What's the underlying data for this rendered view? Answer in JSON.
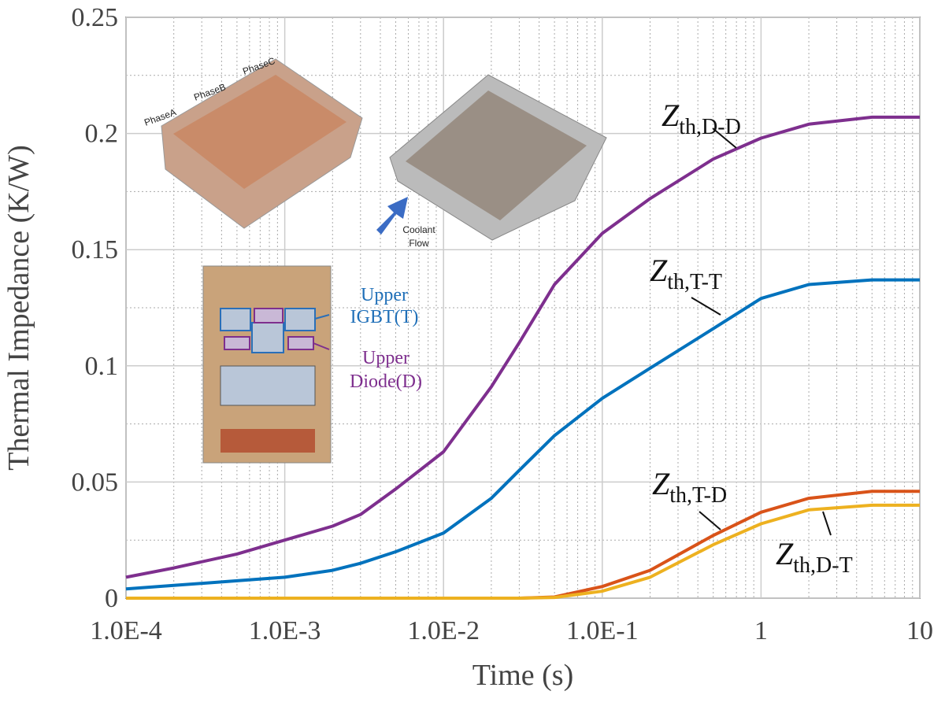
{
  "chart_data": {
    "type": "line",
    "y_label": "Thermal Impedance (K/W)",
    "x_label": "Time (s)",
    "log_x": true,
    "grid": true,
    "x": [
      0.0001,
      0.0002,
      0.0005,
      0.001,
      0.002,
      0.003,
      0.005,
      0.01,
      0.02,
      0.03,
      0.05,
      0.1,
      0.2,
      0.5,
      1,
      2,
      5,
      10
    ],
    "series": [
      {
        "name": "Z",
        "name_sub": "th,D-D",
        "color": "#7e2f8e",
        "values": [
          0.009,
          0.013,
          0.019,
          0.025,
          0.031,
          0.036,
          0.047,
          0.063,
          0.091,
          0.11,
          0.135,
          0.157,
          0.172,
          0.189,
          0.198,
          0.204,
          0.207,
          0.207
        ]
      },
      {
        "name": "Z",
        "name_sub": "th,T-T",
        "color": "#0072bd",
        "values": [
          0.004,
          0.0055,
          0.0075,
          0.009,
          0.012,
          0.015,
          0.02,
          0.028,
          0.043,
          0.055,
          0.07,
          0.086,
          0.099,
          0.116,
          0.129,
          0.135,
          0.137,
          0.137
        ]
      },
      {
        "name": "Z",
        "name_sub": "th,T-D",
        "color": "#d95319",
        "values": [
          0,
          0,
          0,
          0,
          0,
          0,
          0,
          0,
          0,
          0,
          0.0005,
          0.005,
          0.012,
          0.027,
          0.037,
          0.043,
          0.046,
          0.046
        ]
      },
      {
        "name": "Z",
        "name_sub": "th,D-T",
        "color": "#edb120",
        "values": [
          0,
          0,
          0,
          0,
          0,
          0,
          0,
          0,
          0,
          0,
          0.0003,
          0.003,
          0.009,
          0.023,
          0.032,
          0.038,
          0.04,
          0.04
        ]
      }
    ],
    "xlim": [
      0.0001,
      10
    ],
    "ylim": [
      0,
      0.25
    ],
    "xticks": [
      {
        "value": 0.0001,
        "label": "1.0E-4"
      },
      {
        "value": 0.001,
        "label": "1.0E-3"
      },
      {
        "value": 0.01,
        "label": "1.0E-2"
      },
      {
        "value": 0.1,
        "label": "1.0E-1"
      },
      1,
      10
    ],
    "yticks": [
      0,
      0.05,
      0.1,
      0.15,
      0.2,
      0.25
    ],
    "xminorticks": [
      0.0002,
      0.0003,
      0.0004,
      0.0005,
      0.0006,
      0.0007,
      0.0008,
      0.0009,
      0.002,
      0.003,
      0.004,
      0.005,
      0.006,
      0.007,
      0.008,
      0.009,
      0.02,
      0.03,
      0.04,
      0.05,
      0.06,
      0.07,
      0.08,
      0.09,
      0.2,
      0.3,
      0.4,
      0.5,
      0.6,
      0.7,
      0.8,
      0.9,
      2,
      3,
      4,
      5,
      6,
      7,
      8,
      9
    ],
    "yminorticks": [
      0.025,
      0.075,
      0.125,
      0.175,
      0.225
    ],
    "inset": {
      "phases": [
        "PhaseA",
        "PhaseB",
        "PhaseC"
      ],
      "coolant": [
        "Coolant",
        "Flow"
      ],
      "igbt": [
        "Upper",
        "IGBT(T)"
      ],
      "diode": [
        "Upper",
        "Diode(D)"
      ]
    }
  }
}
